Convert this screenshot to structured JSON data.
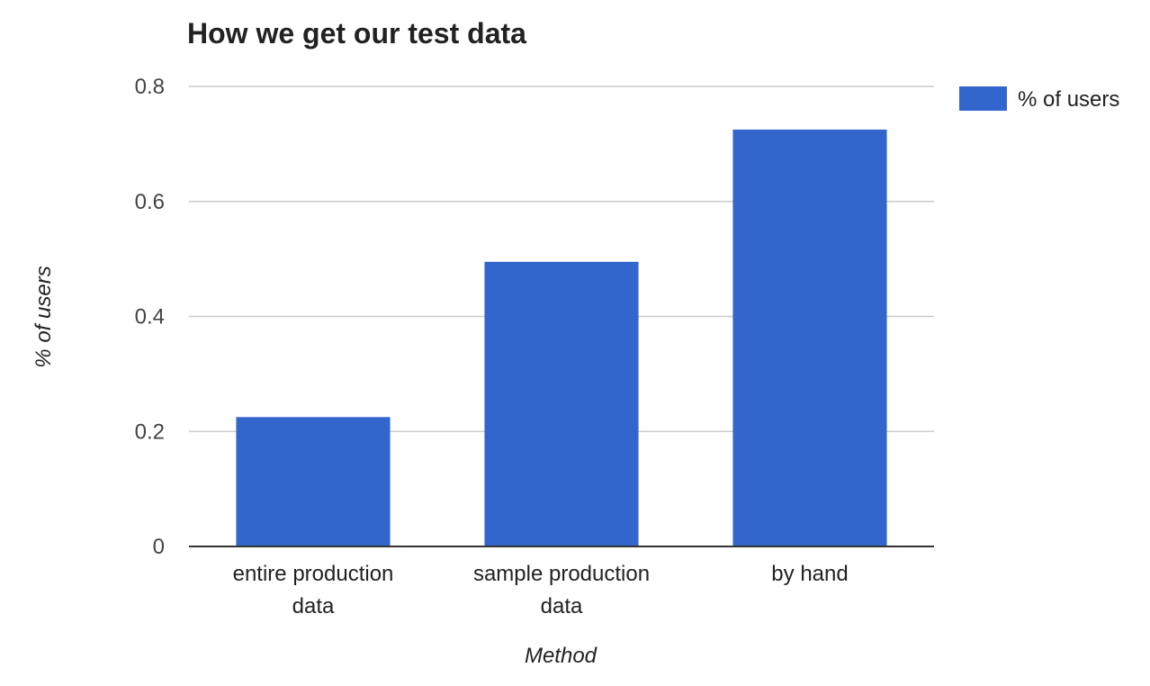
{
  "chart_data": {
    "type": "bar",
    "title": "How we get our test data",
    "xlabel": "Method",
    "ylabel": "% of users",
    "categories": [
      [
        "entire production",
        "data"
      ],
      [
        "sample production",
        "data"
      ],
      [
        "by hand"
      ]
    ],
    "series": [
      {
        "name": "% of users",
        "color": "#3366cc",
        "values": [
          0.225,
          0.495,
          0.725
        ]
      }
    ],
    "ylim": [
      0,
      0.8
    ],
    "yticks": [
      "0",
      "0.2",
      "0.4",
      "0.6",
      "0.8"
    ],
    "grid": true,
    "legend_position": "right"
  }
}
